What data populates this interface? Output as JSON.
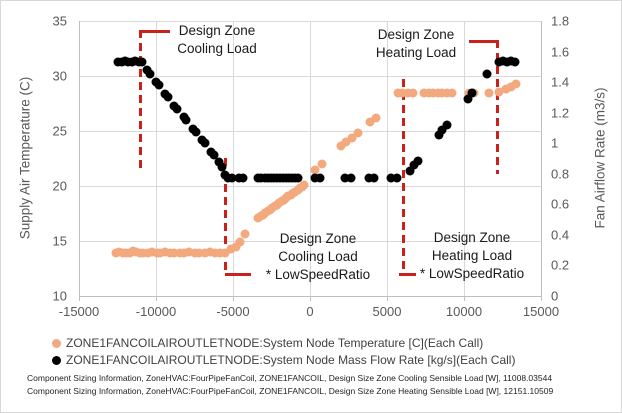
{
  "chart_data": {
    "type": "scatter",
    "title": "",
    "x_axis": {
      "min": -15000,
      "max": 15000,
      "ticks": [
        -15000,
        -10000,
        -5000,
        0,
        5000,
        10000,
        15000
      ]
    },
    "y_left": {
      "label": "Supply Air Temperature (C)",
      "min": 10,
      "max": 35,
      "ticks": [
        35,
        30,
        25,
        20,
        15,
        10
      ]
    },
    "y_right": {
      "label": "Fan Airflow Rate (m3/s)",
      "min": 0,
      "max": 1.8,
      "ticks": [
        1.8,
        1.6,
        1.4,
        1.2,
        1,
        0.8,
        0.6,
        0.4,
        0.2,
        0
      ]
    },
    "grid": true,
    "legend_position": "bottom-left",
    "colors": {
      "temperature": "#F2A97E",
      "mass_flow": "#000000",
      "annotation_line": "#C9221C"
    },
    "series": [
      {
        "name": "ZONE1FANCOILAIROUTLETNODE:System Node Temperature [C](Each Call)",
        "axis": "left",
        "color": "#F2A97E",
        "points": [
          [
            -12600,
            13.95
          ],
          [
            -12380,
            14.0
          ],
          [
            -12160,
            13.95
          ],
          [
            -11940,
            13.9
          ],
          [
            -11720,
            13.95
          ],
          [
            -11500,
            14.05
          ],
          [
            -11280,
            14.0
          ],
          [
            -11060,
            13.9
          ],
          [
            -10840,
            13.9
          ],
          [
            -10500,
            13.95
          ],
          [
            -10280,
            14.0
          ],
          [
            -9950,
            13.9
          ],
          [
            -9730,
            13.95
          ],
          [
            -9400,
            14.0
          ],
          [
            -9100,
            13.9
          ],
          [
            -8800,
            13.95
          ],
          [
            -8450,
            13.9
          ],
          [
            -8150,
            13.95
          ],
          [
            -7850,
            14.0
          ],
          [
            -7500,
            13.9
          ],
          [
            -7200,
            13.95
          ],
          [
            -6850,
            13.9
          ],
          [
            -6500,
            14.0
          ],
          [
            -6200,
            13.95
          ],
          [
            -5850,
            13.9
          ],
          [
            -5500,
            13.95
          ],
          [
            -5150,
            14.3
          ],
          [
            -4800,
            14.5
          ],
          [
            -4550,
            14.9
          ],
          [
            -4250,
            15.6
          ],
          [
            -3350,
            17.1
          ],
          [
            -3200,
            17.25
          ],
          [
            -3050,
            17.4
          ],
          [
            -2900,
            17.55
          ],
          [
            -2750,
            17.7
          ],
          [
            -2600,
            17.85
          ],
          [
            -2450,
            18.0
          ],
          [
            -2300,
            18.15
          ],
          [
            -2150,
            18.3
          ],
          [
            -2000,
            18.45
          ],
          [
            -1850,
            18.6
          ],
          [
            -1700,
            18.75
          ],
          [
            -1550,
            18.9
          ],
          [
            -1400,
            19.05
          ],
          [
            -1250,
            19.2
          ],
          [
            -1100,
            19.35
          ],
          [
            -950,
            19.5
          ],
          [
            -800,
            19.65
          ],
          [
            -650,
            19.8
          ],
          [
            -500,
            19.95
          ],
          [
            -380,
            20.1
          ],
          [
            350,
            21.5
          ],
          [
            750,
            22.0
          ],
          [
            2000,
            23.6
          ],
          [
            2350,
            24.0
          ],
          [
            2750,
            24.4
          ],
          [
            3100,
            24.8
          ],
          [
            3900,
            25.8
          ],
          [
            4300,
            26.2
          ],
          [
            5700,
            28.5
          ],
          [
            6000,
            28.5
          ],
          [
            6350,
            28.5
          ],
          [
            6700,
            28.5
          ],
          [
            7400,
            28.5
          ],
          [
            7700,
            28.5
          ],
          [
            8000,
            28.5
          ],
          [
            8300,
            28.5
          ],
          [
            8600,
            28.5
          ],
          [
            8900,
            28.5
          ],
          [
            9200,
            28.5
          ],
          [
            10300,
            28.45
          ],
          [
            10650,
            28.5
          ],
          [
            11600,
            28.45
          ],
          [
            12300,
            28.55
          ],
          [
            12700,
            28.8
          ],
          [
            13050,
            29.0
          ],
          [
            13400,
            29.25
          ]
        ]
      },
      {
        "name": "ZONE1FANCOILAIROUTLETNODE:System Node Mass Flow Rate [kg/s](Each Call)",
        "axis": "right",
        "color": "#000000",
        "points": [
          [
            -12450,
            1.53
          ],
          [
            -12230,
            1.53
          ],
          [
            -12010,
            1.535
          ],
          [
            -11790,
            1.53
          ],
          [
            -11570,
            1.53
          ],
          [
            -11350,
            1.535
          ],
          [
            -11130,
            1.53
          ],
          [
            -10910,
            1.53
          ],
          [
            -10600,
            1.48
          ],
          [
            -10420,
            1.455
          ],
          [
            -10000,
            1.4
          ],
          [
            -9830,
            1.38
          ],
          [
            -9400,
            1.325
          ],
          [
            -9230,
            1.3
          ],
          [
            -8800,
            1.245
          ],
          [
            -8630,
            1.225
          ],
          [
            -8200,
            1.17
          ],
          [
            -8030,
            1.15
          ],
          [
            -7600,
            1.095
          ],
          [
            -7430,
            1.075
          ],
          [
            -7000,
            1.02
          ],
          [
            -6830,
            1.0
          ],
          [
            -6400,
            0.945
          ],
          [
            -6230,
            0.925
          ],
          [
            -5900,
            0.875
          ],
          [
            -5700,
            0.845
          ],
          [
            -5550,
            0.79
          ],
          [
            -5300,
            0.77
          ],
          [
            -5050,
            0.77
          ],
          [
            -4600,
            0.77
          ],
          [
            -4350,
            0.77
          ],
          [
            -3350,
            0.77
          ],
          [
            -3150,
            0.77
          ],
          [
            -2950,
            0.77
          ],
          [
            -2750,
            0.77
          ],
          [
            -2550,
            0.77
          ],
          [
            -2350,
            0.77
          ],
          [
            -2150,
            0.77
          ],
          [
            -1950,
            0.77
          ],
          [
            -1750,
            0.77
          ],
          [
            -1550,
            0.77
          ],
          [
            -1350,
            0.77
          ],
          [
            -1150,
            0.77
          ],
          [
            -950,
            0.77
          ],
          [
            -750,
            0.77
          ],
          [
            300,
            0.77
          ],
          [
            680,
            0.77
          ],
          [
            2250,
            0.77
          ],
          [
            2650,
            0.77
          ],
          [
            3800,
            0.77
          ],
          [
            4150,
            0.77
          ],
          [
            5250,
            0.77
          ],
          [
            5650,
            0.77
          ],
          [
            6500,
            0.82
          ],
          [
            6750,
            0.855
          ],
          [
            7000,
            0.885
          ],
          [
            8350,
            1.055
          ],
          [
            8600,
            1.085
          ],
          [
            8900,
            1.12
          ],
          [
            10250,
            1.29
          ],
          [
            10550,
            1.33
          ],
          [
            11500,
            1.45
          ],
          [
            12300,
            1.53
          ],
          [
            12550,
            1.535
          ],
          [
            12800,
            1.53
          ],
          [
            13050,
            1.535
          ],
          [
            13300,
            1.53
          ]
        ]
      }
    ],
    "annotations": {
      "cooling_load": {
        "x": -11008,
        "label_lines": [
          "Design Zone",
          "Cooling Load"
        ]
      },
      "cooling_load_lsr": {
        "x": -5504,
        "label_lines": [
          "Design Zone",
          "Cooling Load",
          "* LowSpeedRatio"
        ]
      },
      "heating_load_lsr": {
        "x": 6076,
        "label_lines": [
          "Design Zone",
          "Heating Load",
          "* LowSpeedRatio"
        ]
      },
      "heating_load": {
        "x": 12151,
        "label_lines": [
          "Design Zone",
          "Heating Load"
        ]
      }
    }
  },
  "legend": [
    {
      "label": "ZONE1FANCOILAIROUTLETNODE:System Node Temperature [C](Each Call)",
      "marker": "orange-dot"
    },
    {
      "label": "ZONE1FANCOILAIROUTLETNODE:System Node Mass Flow Rate [kg/s](Each Call)",
      "marker": "black-dot"
    }
  ],
  "footer": {
    "line1": "Component Sizing Information, ZoneHVAC:FourPipeFanCoil, ZONE1FANCOIL, Design Size Zone Cooling Sensible Load [W], 11008.03544",
    "line2": "Component Sizing Information, ZoneHVAC:FourPipeFanCoil, ZONE1FANCOIL, Design Size Zone Heating Sensible Load [W], 12151.10509"
  }
}
